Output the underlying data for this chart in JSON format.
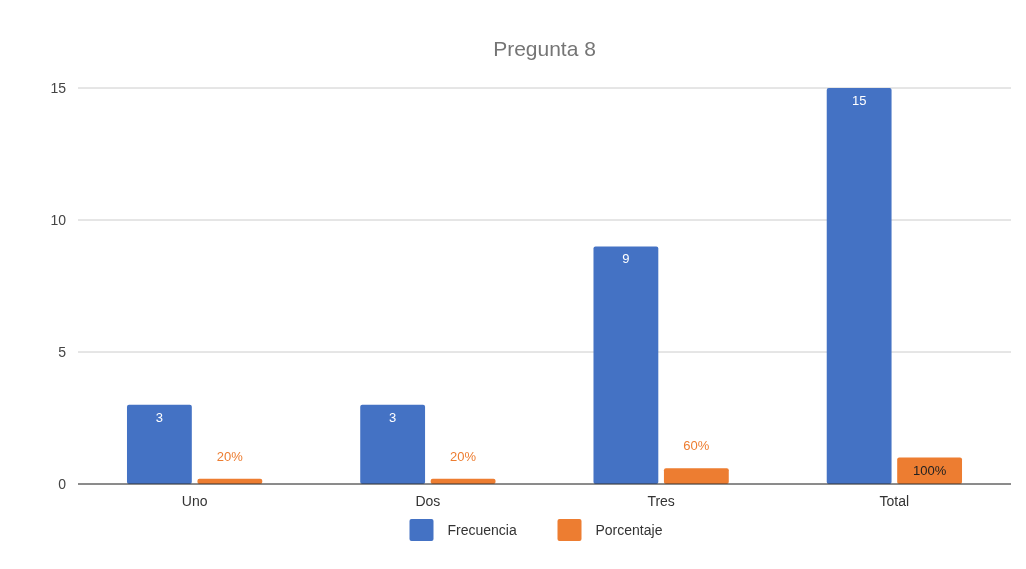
{
  "chart_data": {
    "type": "bar",
    "title": "Pregunta 8",
    "categories": [
      "Uno",
      "Dos",
      "Tres",
      "Total"
    ],
    "series": [
      {
        "name": "Frecuencia",
        "color": "#4472c4",
        "values": [
          3,
          3,
          9,
          15
        ],
        "value_labels": [
          "3",
          "3",
          "9",
          "15"
        ]
      },
      {
        "name": "Porcentaje",
        "color": "#ed7d31",
        "values": [
          0.2,
          0.2,
          0.6,
          1
        ],
        "value_labels": [
          "20%",
          "20%",
          "60%",
          "100%"
        ]
      }
    ],
    "ylim": [
      0,
      15
    ],
    "yticks": [
      0,
      5,
      10,
      15
    ],
    "grid": "y",
    "legend": "bottom"
  }
}
